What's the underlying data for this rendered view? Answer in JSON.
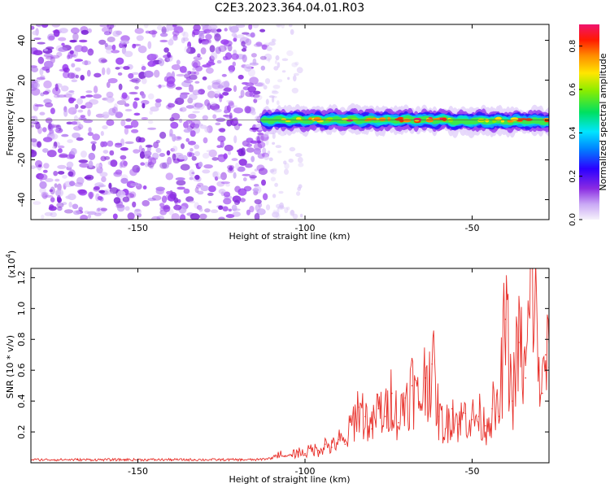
{
  "title": "C2E3.2023.364.04.01.R03",
  "chart_data": [
    {
      "type": "heatmap",
      "name": "spectrogram",
      "xlabel": "Height of straight line (km)",
      "ylabel": "Frequency (Hz)",
      "xlim": [
        -182,
        -27
      ],
      "ylim": [
        -50,
        48
      ],
      "xticks": [
        -150,
        -100,
        -50
      ],
      "xtick_labels": [
        "-150",
        "-100",
        "-50"
      ],
      "yticks": [
        -40,
        -20,
        0,
        20,
        40
      ],
      "ytick_labels": [
        "-40",
        "-20",
        "0",
        "20",
        "40"
      ],
      "signal_band": {
        "x_start": -112,
        "x_end": -27,
        "center_frequency": 0,
        "half_width_hz": 3,
        "peak_normalized_amplitude": 0.9
      },
      "noise_region": {
        "x_start": -182,
        "x_end": -112,
        "typical_normalized_amplitude": 0.1
      },
      "colorbar": {
        "label": "Normalized spectral amplitude",
        "range": [
          0,
          0.9
        ],
        "ticks": [
          0.0,
          0.2,
          0.4,
          0.6,
          0.8
        ],
        "tick_labels": [
          "0.0",
          "0.2",
          "0.4",
          "0.6",
          "0.8"
        ]
      }
    },
    {
      "type": "line",
      "name": "snr",
      "xlabel": "Height of straight line (km)",
      "ylabel": "SNR (10 * v/v)",
      "scale_label": "(x10",
      "scale_exponent": "4",
      "scale_close": ")",
      "xlim": [
        -182,
        -27
      ],
      "ylim": [
        0,
        1.26
      ],
      "xticks": [
        -150,
        -100,
        -50
      ],
      "xtick_labels": [
        "-150",
        "-100",
        "-50"
      ],
      "yticks": [
        0.2,
        0.4,
        0.6,
        0.8,
        1.0,
        1.2
      ],
      "ytick_labels": [
        "0.2",
        "0.4",
        "0.6",
        "0.8",
        "1.0",
        "1.2"
      ],
      "color": "#e8302a",
      "series": [
        {
          "name": "SNR",
          "x": [
            -182,
            -175,
            -168,
            -161,
            -154,
            -147,
            -140,
            -133,
            -126,
            -119,
            -114,
            -110,
            -108,
            -106,
            -104,
            -102,
            -100,
            -98,
            -96,
            -94,
            -92,
            -90,
            -88,
            -86,
            -84,
            -82,
            -80,
            -78,
            -76,
            -74,
            -72,
            -70,
            -68,
            -66,
            -64,
            -62,
            -60,
            -58,
            -56,
            -54,
            -52,
            -50,
            -48,
            -46,
            -44,
            -42,
            -40,
            -38,
            -36,
            -34,
            -32,
            -30,
            -29,
            -28,
            -27
          ],
          "values": [
            0.02,
            0.02,
            0.02,
            0.02,
            0.02,
            0.02,
            0.02,
            0.02,
            0.02,
            0.02,
            0.02,
            0.03,
            0.06,
            0.04,
            0.05,
            0.07,
            0.06,
            0.09,
            0.08,
            0.12,
            0.1,
            0.15,
            0.12,
            0.25,
            0.36,
            0.3,
            0.22,
            0.35,
            0.3,
            0.45,
            0.26,
            0.42,
            0.5,
            0.38,
            0.55,
            0.64,
            0.3,
            0.22,
            0.35,
            0.25,
            0.32,
            0.28,
            0.3,
            0.24,
            0.35,
            0.3,
            0.93,
            0.4,
            0.78,
            0.55,
            1.26,
            0.6,
            0.45,
            0.7,
            0.62
          ]
        }
      ]
    }
  ]
}
